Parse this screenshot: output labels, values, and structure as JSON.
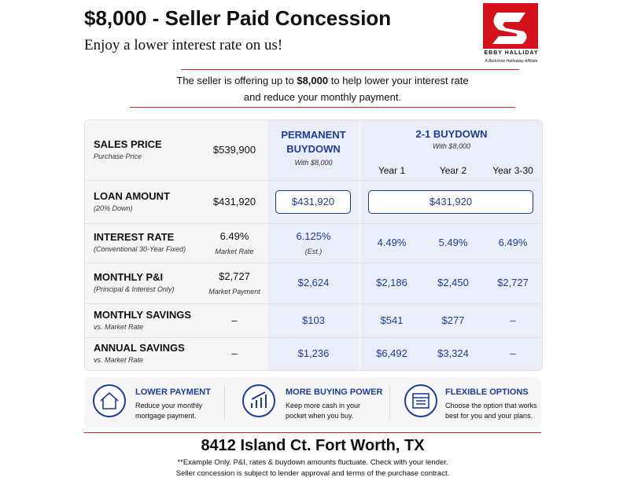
{
  "header": {
    "title": "$8,000 - Seller Paid Concession",
    "subtitle": "Enjoy a lower interest rate on us!",
    "brand": "EBBY HALLIDAY",
    "brand_tagline": "A Berkshire Hathaway Affiliate"
  },
  "intro": {
    "lead": "The seller is offering up to",
    "amount": "$8,000",
    "rest": "to help lower your interest rate",
    "line2": "and reduce your monthly payment."
  },
  "table": {
    "permanent": {
      "title": "PERMANENT BUYDOWN",
      "note": "With $8,000"
    },
    "buydown": {
      "title": "2-1 BUYDOWN",
      "note": "With $8,000",
      "years": [
        "Year 1",
        "Year 2",
        "Year 3-30"
      ]
    },
    "rows": [
      {
        "label": "SALES PRICE",
        "sub": "Purchase Price",
        "market": "$539,900"
      },
      {
        "label": "LOAN AMOUNT",
        "sub": "(20% Down)",
        "market": "$431,920",
        "permanent": "$431,920",
        "buydown": "$431,920"
      },
      {
        "label": "INTEREST RATE",
        "sub": "(Conventional 30-Year Fixed)",
        "market": "6.49%",
        "market_note": "Market Rate",
        "permanent": "6.125%",
        "permanent_note": "(Est.)",
        "years": [
          "4.49%",
          "5.49%",
          "6.49%"
        ]
      },
      {
        "label": "MONTHLY P&I",
        "sub": "(Principal & Interest Only)",
        "market": "$2,727",
        "market_note": "Market Payment",
        "permanent": "$2,624",
        "years": [
          "$2,186",
          "$2,450",
          "$2,727"
        ]
      },
      {
        "label": "MONTHLY SAVINGS",
        "sub": "vs. Market Rate",
        "market": "–",
        "permanent": "$103",
        "years": [
          "$541",
          "$277",
          "–"
        ]
      },
      {
        "label": "ANNUAL SAVINGS",
        "sub": "vs. Market Rate",
        "market": "–",
        "permanent": "$1,236",
        "years": [
          "$6,492",
          "$3,324",
          "–"
        ]
      }
    ]
  },
  "features": [
    {
      "title": "LOWER PAYMENT",
      "text": "Reduce your monthly mortgage payment."
    },
    {
      "title": "MORE BUYING POWER",
      "text": "Keep more cash in your pocket when you buy."
    },
    {
      "title": "FLEXIBLE OPTIONS",
      "text": "Choose the option that works best for you and your plans."
    }
  ],
  "address": "8412 Island Ct. Fort Worth, TX",
  "disclaimer": [
    "**Example Only. P&I, rates & buydown amounts fluctuate. Check with your lender.",
    "Seller concession is subject to lender approval and terms of the purchase contract."
  ]
}
